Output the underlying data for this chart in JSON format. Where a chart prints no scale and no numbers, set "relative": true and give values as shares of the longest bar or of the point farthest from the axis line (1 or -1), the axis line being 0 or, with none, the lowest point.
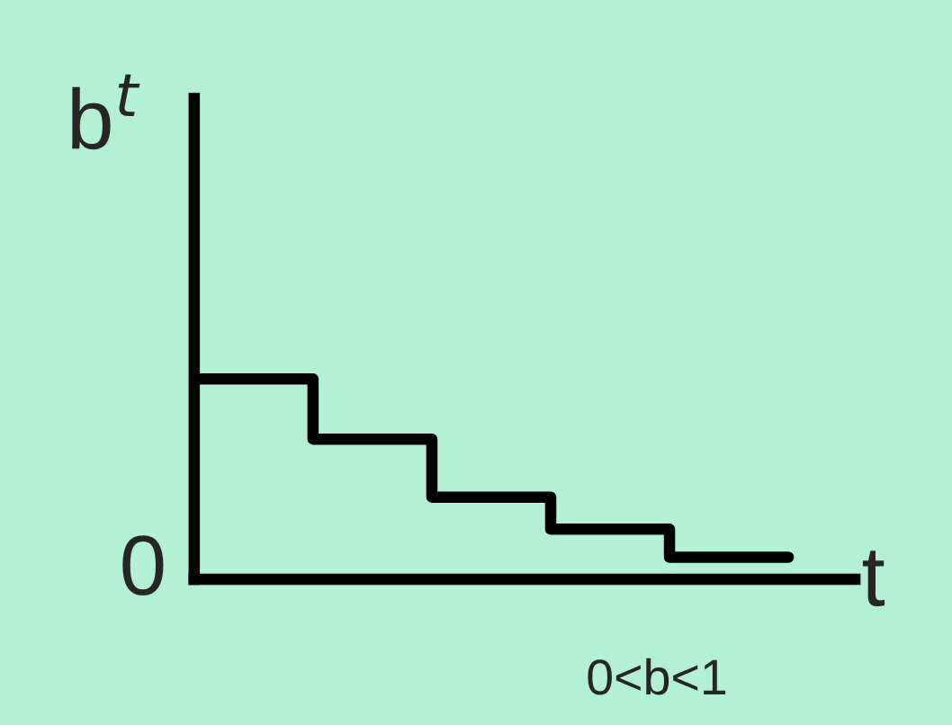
{
  "chart_data": {
    "type": "step",
    "relative": true,
    "categories": [
      null,
      null,
      null,
      null,
      null,
      null
    ],
    "values": [
      1,
      0.7,
      0.41,
      0.25,
      0.11,
      0.11
    ],
    "color": "#000000",
    "ylabel": "b$^{t}$",
    "xlabel": "t",
    "annotations": [
      "0",
      "0<b<1"
    ],
    "legend": false
  }
}
